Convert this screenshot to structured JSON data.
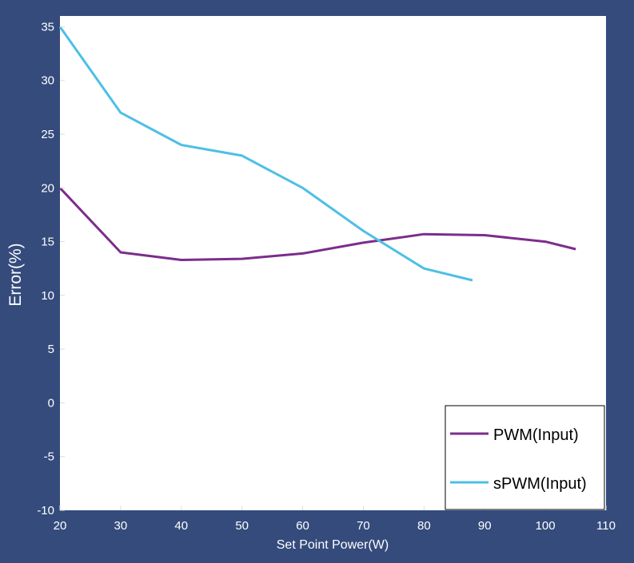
{
  "chart_data": {
    "type": "line",
    "xlabel": "Set Point Power(W)",
    "ylabel": "Error(%)",
    "xlim": [
      20,
      110
    ],
    "ylim": [
      -10,
      36
    ],
    "xticks": [
      20,
      30,
      40,
      50,
      60,
      70,
      80,
      90,
      100,
      110
    ],
    "yticks": [
      -10,
      -5,
      0,
      5,
      10,
      15,
      20,
      25,
      30,
      35
    ],
    "grid": false,
    "legend_position": "bottom-right",
    "colors": {
      "background": "#344b7c",
      "plot_area": "#ffffff"
    },
    "series": [
      {
        "name": "PWM(Input)",
        "color": "#7b2d8b",
        "x": [
          20,
          30,
          40,
          50,
          60,
          70,
          80,
          90,
          100,
          105
        ],
        "y": [
          20,
          14,
          13.3,
          13.4,
          13.9,
          14.9,
          15.7,
          15.6,
          15,
          14.3
        ]
      },
      {
        "name": "sPWM(Input)",
        "color": "#4ebfe6",
        "x": [
          20,
          30,
          40,
          50,
          60,
          70,
          80,
          88
        ],
        "y": [
          35,
          27,
          24,
          23,
          20,
          16,
          12.5,
          11.4
        ]
      }
    ]
  }
}
